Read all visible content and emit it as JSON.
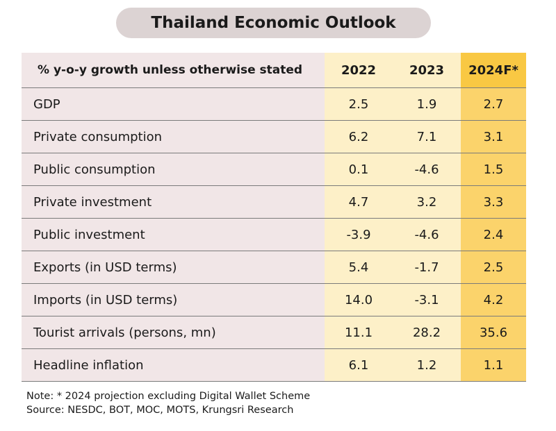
{
  "title": "Thailand Economic Outlook",
  "chart_data": {
    "type": "table",
    "title": "Thailand Economic Outlook",
    "header_label": "% y-o-y  growth unless otherwise stated",
    "columns": [
      "2022",
      "2023",
      "2024F*"
    ],
    "rows": [
      {
        "label": "GDP",
        "values": [
          "2.5",
          "1.9",
          "2.7"
        ]
      },
      {
        "label": "Private consumption",
        "values": [
          "6.2",
          "7.1",
          "3.1"
        ]
      },
      {
        "label": "Public consumption",
        "values": [
          "0.1",
          "-4.6",
          "1.5"
        ]
      },
      {
        "label": "Private investment",
        "values": [
          "4.7",
          "3.2",
          "3.3"
        ]
      },
      {
        "label": "Public investment",
        "values": [
          "-3.9",
          "-4.6",
          "2.4"
        ]
      },
      {
        "label": "Exports (in USD terms)",
        "values": [
          "5.4",
          "-1.7",
          "2.5"
        ]
      },
      {
        "label": "Imports (in USD terms)",
        "values": [
          "14.0",
          "-3.1",
          "4.2"
        ]
      },
      {
        "label": "Tourist arrivals (persons, mn)",
        "values": [
          "11.1",
          "28.2",
          "35.6"
        ]
      },
      {
        "label": "Headline inflation",
        "values": [
          "6.1",
          "1.2",
          "1.1"
        ]
      }
    ]
  },
  "notes": {
    "note": "Note: * 2024 projection excluding Digital Wallet Scheme",
    "source": "Source: NESDC, BOT, MOC, MOTS, Krungsri Research"
  },
  "colors": {
    "title_pill": "#dcd3d3",
    "label_column": "#f1e6e7",
    "year_columns": "#fdf0c8",
    "forecast_column": "#fbd36b",
    "forecast_header": "#f9c843"
  }
}
